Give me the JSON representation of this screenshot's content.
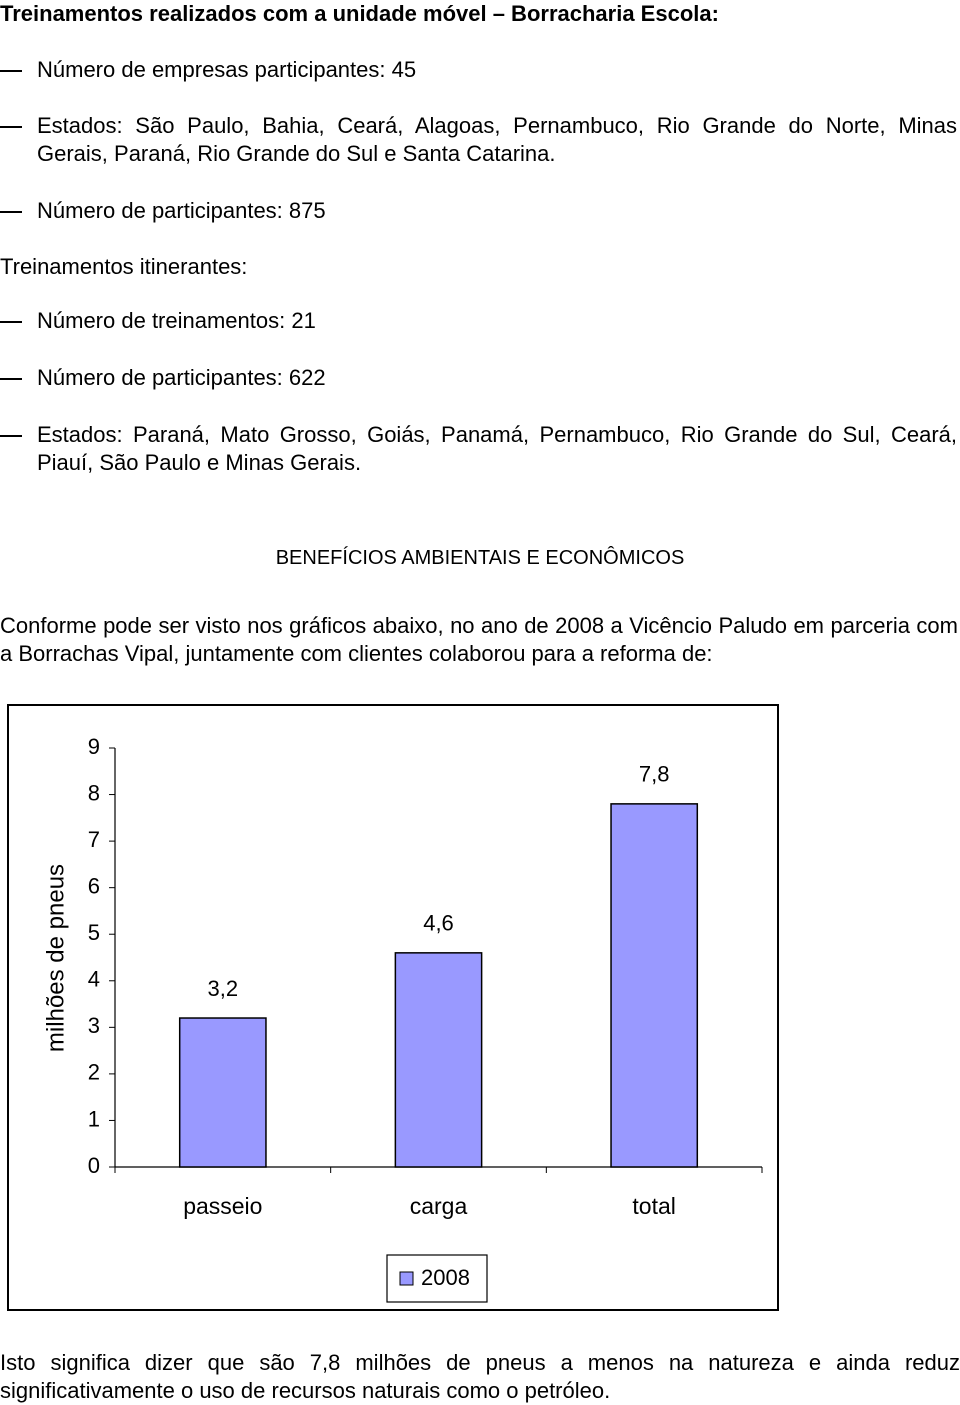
{
  "heading_1": "Treinamentos realizados com a unidade móvel – Borracharia Escola:",
  "list_1": [
    "Número de empresas participantes: 45",
    "Estados: São Paulo, Bahia, Ceará, Alagoas, Pernambuco, Rio Grande do Norte, Minas Gerais, Paraná, Rio Grande do Sul e Santa Catarina.",
    "Número de participantes: 875"
  ],
  "heading_2": "Treinamentos itinerantes:",
  "list_2": [
    "Número de treinamentos: 21",
    "Número de participantes: 622",
    "Estados: Paraná, Mato Grosso, Goiás, Panamá, Pernambuco, Rio Grande do Sul, Ceará, Piauí, São Paulo e Minas Gerais."
  ],
  "section_title": "BENEFÍCIOS AMBIENTAIS E ECONÔMICOS",
  "paragraph": "Conforme pode ser visto nos gráficos abaixo, no ano de 2008 a  Vicêncio Paludo em parceria com a Borrachas Vipal, juntamente com clientes colaborou para a reforma de:",
  "chart_data": {
    "type": "bar",
    "y_label": "milhões de pneus",
    "categories": [
      "passeio",
      "carga",
      "total"
    ],
    "series": [
      {
        "name": "2008",
        "color": "#9999ff",
        "values": [
          3.2,
          4.6,
          7.8
        ],
        "value_labels": [
          "3,2",
          "4,6",
          "7,8"
        ]
      }
    ],
    "ylim": [
      0,
      9
    ],
    "yticks": [
      0,
      1,
      2,
      3,
      4,
      5,
      6,
      7,
      8,
      9
    ],
    "grid": false,
    "legend": "bottom"
  },
  "closing": "Isto significa dizer que são 7,8 milhões de pneus a menos na natureza e ainda reduz significativamente o uso de recursos naturais como o petróleo."
}
